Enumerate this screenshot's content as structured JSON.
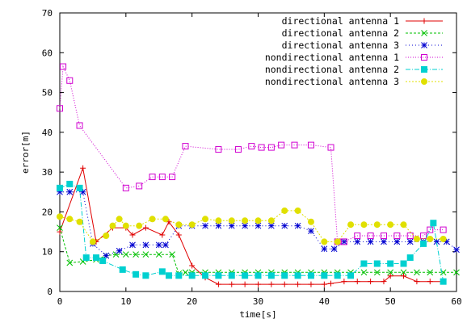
{
  "chart_data": {
    "type": "line",
    "title": "",
    "xlabel": "time[s]",
    "ylabel": "error[m]",
    "xlim": [
      0,
      60
    ],
    "ylim": [
      0,
      70
    ],
    "xticks": [
      0,
      10,
      20,
      30,
      40,
      50,
      60
    ],
    "yticks": [
      0,
      10,
      20,
      30,
      40,
      50,
      60,
      70
    ],
    "grid": false,
    "legend_position": "top-right",
    "series": [
      {
        "name": "directional antenna 1",
        "color": "#e00000",
        "marker": "plus",
        "dash": "",
        "x": [
          0,
          3.5,
          5.5,
          8,
          10,
          11,
          13,
          15.5,
          16.5,
          18,
          20,
          22,
          24,
          26,
          28,
          30,
          32,
          34,
          36,
          38,
          40,
          41,
          43,
          45,
          47,
          49,
          50,
          52,
          54,
          56,
          58
        ],
        "y": [
          15,
          31,
          12.5,
          16,
          16,
          14.2,
          16,
          14.2,
          17.5,
          14.2,
          6.5,
          3.5,
          1.8,
          1.8,
          1.8,
          1.8,
          1.8,
          1.8,
          1.8,
          1.8,
          1.8,
          2,
          2.5,
          2.5,
          2.5,
          2.5,
          3.9,
          3.9,
          2.5,
          2.5,
          2.5
        ]
      },
      {
        "name": "directional antenna 2",
        "color": "#00c000",
        "marker": "cross",
        "dash": "3,2",
        "x": [
          0,
          1.5,
          3.5,
          5.5,
          7,
          8.5,
          10,
          11.5,
          13,
          15,
          17,
          18,
          19,
          20,
          22,
          24,
          26,
          28,
          30,
          32,
          34,
          36,
          38,
          40,
          42,
          44,
          46,
          48,
          50,
          52,
          54,
          56,
          58,
          60
        ],
        "y": [
          16,
          7.2,
          7.5,
          8,
          9,
          9.3,
          9.3,
          9.3,
          9.3,
          9.3,
          9.3,
          4.5,
          4.8,
          4.8,
          4.8,
          4.8,
          4.8,
          4.8,
          4.8,
          4.8,
          4.8,
          4.8,
          4.8,
          4.8,
          4.8,
          4.8,
          4.8,
          4.8,
          4.8,
          4.8,
          4.8,
          4.8,
          4.8,
          4.8
        ]
      },
      {
        "name": "directional antenna 3",
        "color": "#0000d0",
        "marker": "star",
        "dash": "1,3",
        "x": [
          0,
          1.5,
          3.5,
          5,
          7,
          9,
          11,
          13,
          15,
          16,
          18,
          20,
          22,
          24,
          26,
          28,
          30,
          32,
          34,
          36,
          38,
          40,
          41.5,
          43,
          45,
          47,
          49,
          51,
          53,
          55,
          57,
          58.5,
          60
        ],
        "y": [
          25,
          25,
          25,
          12,
          9,
          10.2,
          11.7,
          11.7,
          11.7,
          11.7,
          16.5,
          16.5,
          16.5,
          16.5,
          16.5,
          16.5,
          16.5,
          16.5,
          16.5,
          16.5,
          15.2,
          10.7,
          10.7,
          12.5,
          12.5,
          12.5,
          12.5,
          12.5,
          12.5,
          12.5,
          12.5,
          12.5,
          10.5
        ]
      },
      {
        "name": "nondirectional antenna 1",
        "color": "#d000d0",
        "marker": "box",
        "dash": "1,2",
        "x": [
          0,
          0.5,
          1.5,
          3,
          10,
          12,
          14,
          15.5,
          17,
          19,
          24,
          27,
          29,
          30.5,
          32,
          33.5,
          35.5,
          38,
          41,
          42,
          43,
          45,
          47,
          49,
          51,
          53,
          55,
          56,
          58
        ],
        "y": [
          46,
          56.5,
          53,
          41.7,
          26,
          26.5,
          28.8,
          28.8,
          28.8,
          36.5,
          35.7,
          35.7,
          36.5,
          36.2,
          36.2,
          36.8,
          36.8,
          36.8,
          36.2,
          12.5,
          12.5,
          14,
          14,
          14,
          14,
          14,
          14,
          15.5,
          15.5
        ]
      },
      {
        "name": "nondirectional antenna 2",
        "color": "#00d0d0",
        "marker": "fbox",
        "dash": "6,2,1,2",
        "x": [
          0,
          1.5,
          3,
          4,
          5.5,
          6.5,
          9.5,
          11.5,
          13,
          15.5,
          16.5,
          18,
          20,
          22,
          24,
          26,
          28,
          30,
          32,
          34,
          36,
          38,
          40,
          42,
          44,
          46,
          48,
          50,
          52,
          53,
          55,
          56.5,
          58
        ],
        "y": [
          26,
          27,
          26,
          8.5,
          8.5,
          7.7,
          5.5,
          4.3,
          4,
          5,
          4,
          4,
          4,
          4,
          4,
          4,
          4,
          4,
          4,
          4,
          4,
          4,
          4,
          4,
          4,
          7,
          7,
          7,
          7,
          8.5,
          12,
          17.2,
          2.5
        ]
      },
      {
        "name": "nondirectional antenna 3",
        "color": "#e0e000",
        "marker": "circle",
        "dash": "2,2",
        "x": [
          0,
          1.5,
          3,
          5,
          7,
          8,
          9,
          10,
          12,
          14,
          16,
          18,
          20,
          22,
          24,
          26,
          28,
          30,
          32,
          34,
          36,
          38,
          40,
          42,
          44,
          46,
          48,
          50,
          52,
          54,
          56,
          58
        ],
        "y": [
          18.8,
          18.2,
          17.5,
          12.5,
          14,
          16.5,
          18.2,
          16.5,
          16.5,
          18.2,
          18.2,
          16.8,
          16.8,
          18.2,
          17.8,
          17.8,
          17.8,
          17.8,
          17.8,
          20.3,
          20.3,
          17.5,
          12.5,
          12.5,
          16.8,
          16.8,
          16.8,
          16.8,
          16.8,
          13.2,
          13.2,
          13.2
        ]
      }
    ]
  }
}
